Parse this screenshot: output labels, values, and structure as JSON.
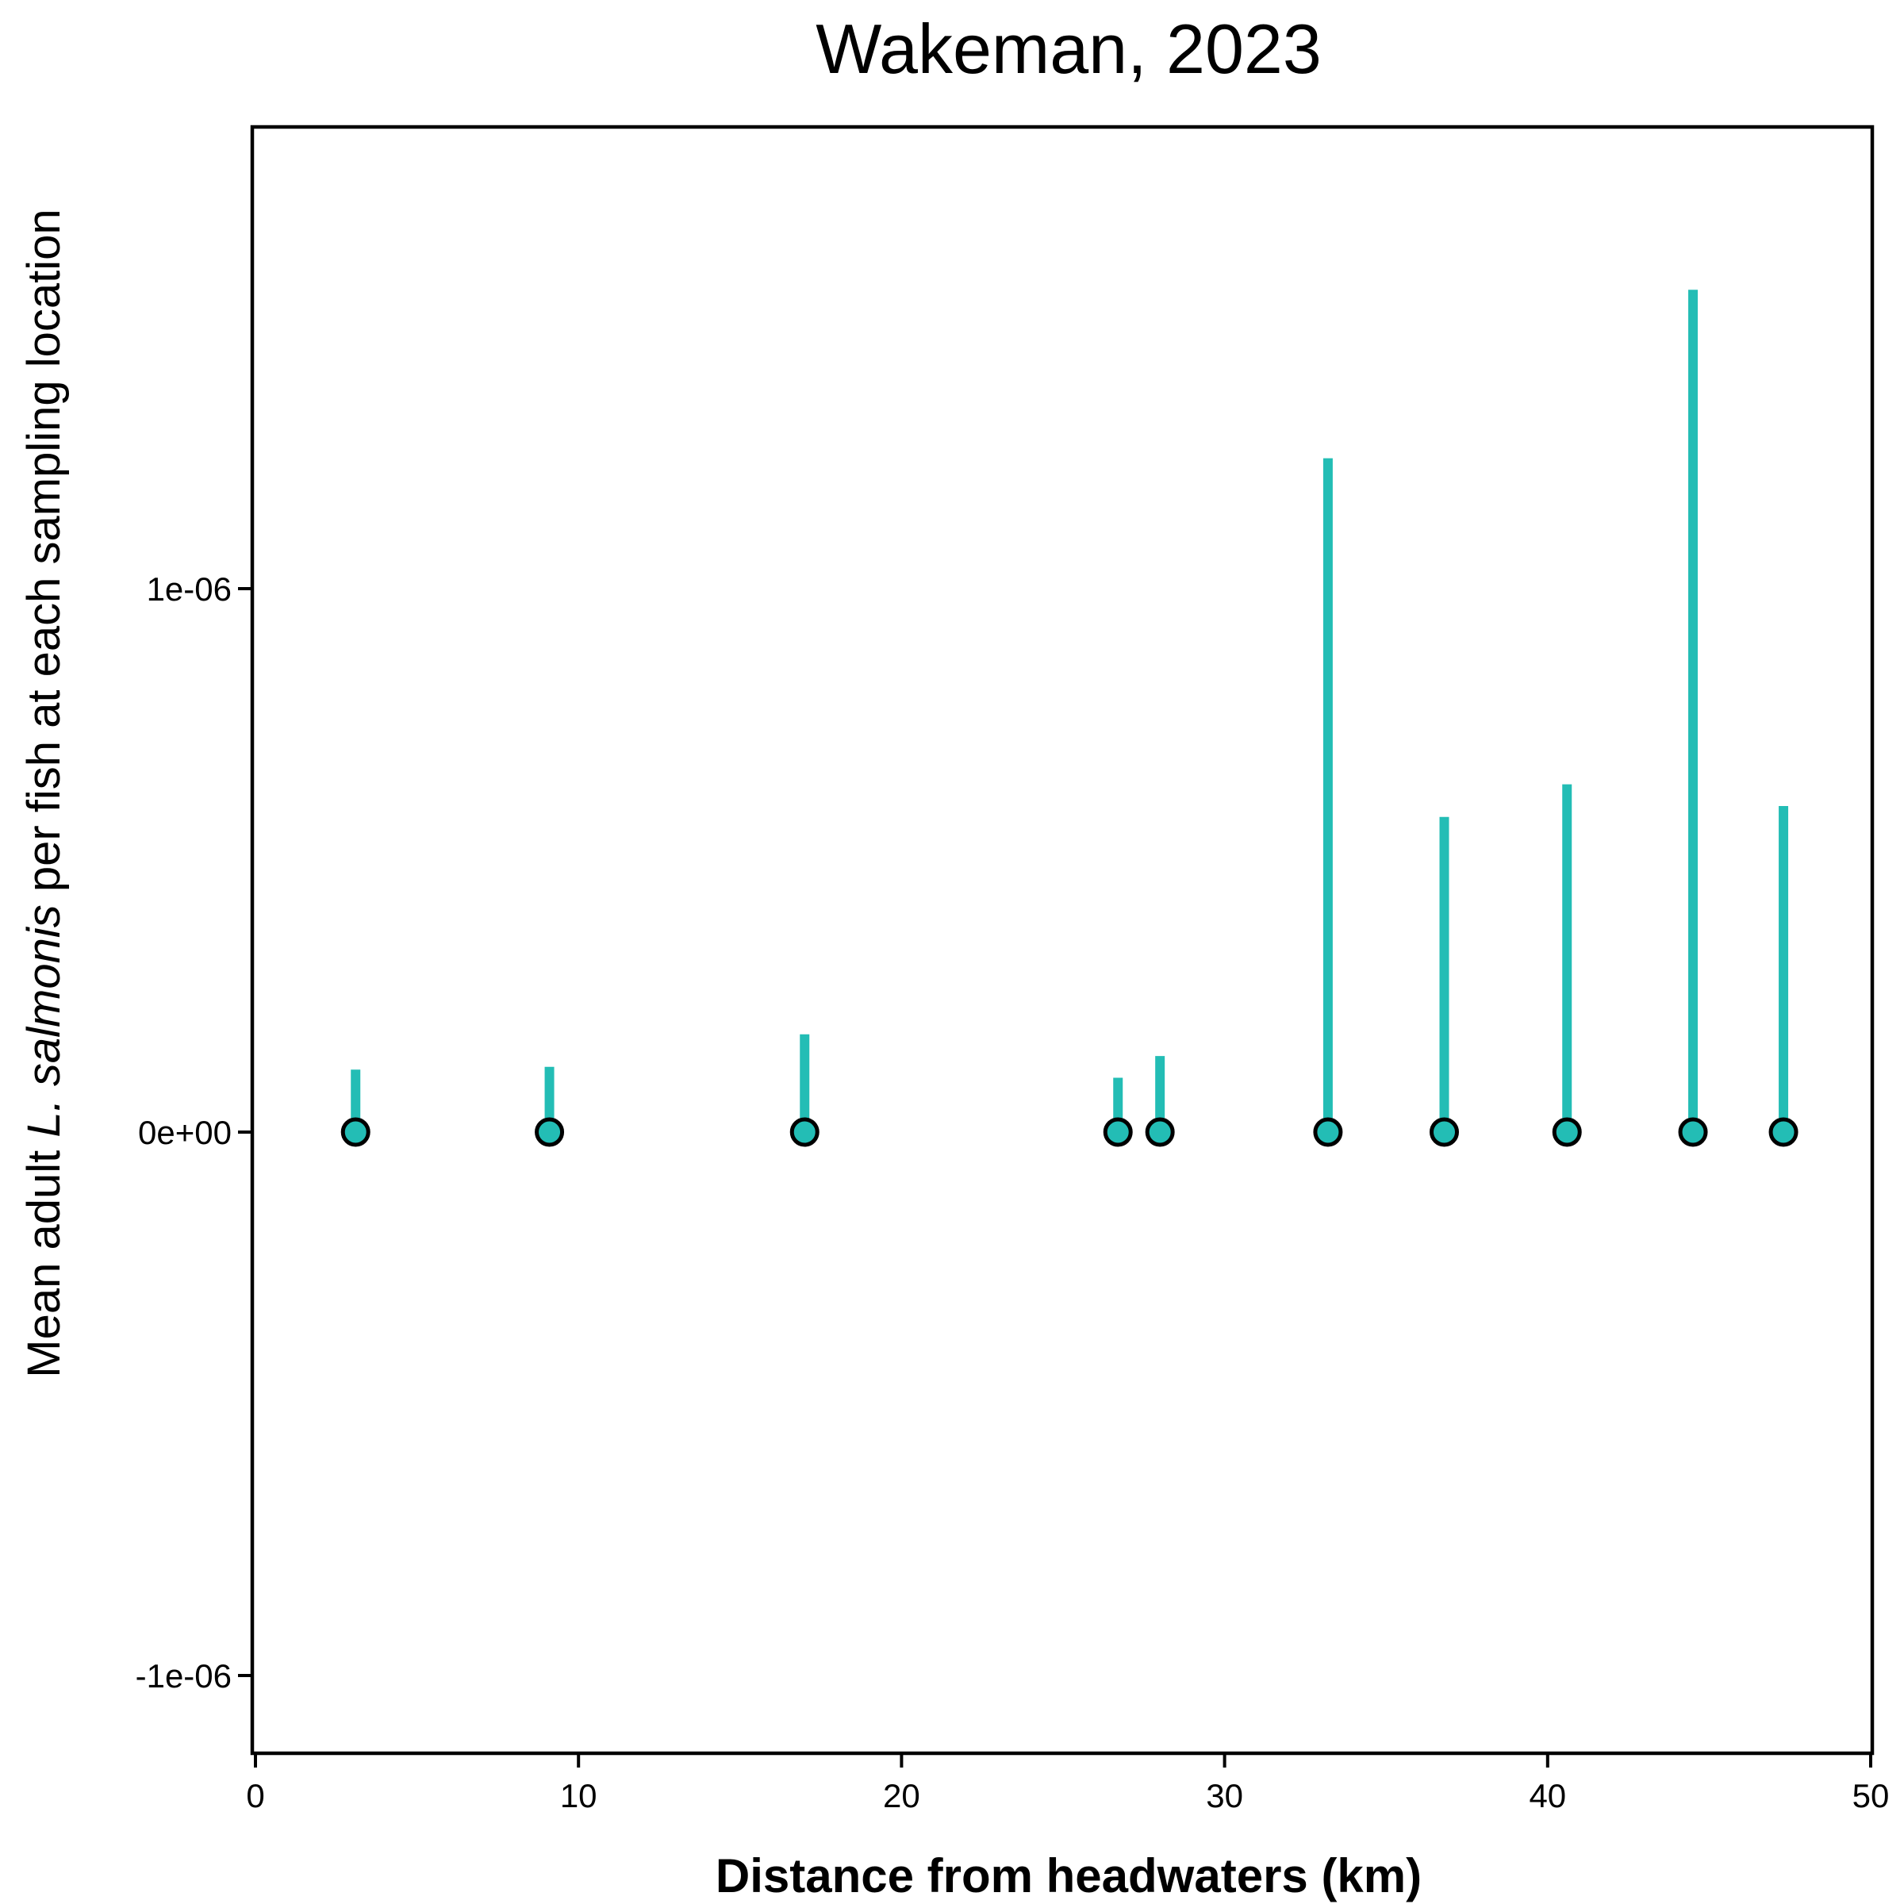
{
  "chart_data": {
    "type": "scatter",
    "title": "Wakeman, 2023",
    "xlabel": "Distance from headwaters (km)",
    "ylabel": {
      "prefix": "Mean adult ",
      "italic": "L. salmonis",
      "suffix": " per fish at each sampling location"
    },
    "xlim": [
      0,
      50
    ],
    "ylim": [
      -1.1e-06,
      1.85e-06
    ],
    "x_ticks": [
      0,
      10,
      20,
      30,
      40,
      50
    ],
    "x_tick_labels": [
      "0",
      "10",
      "20",
      "30",
      "40",
      "50"
    ],
    "y_ticks": [
      -1e-06,
      0,
      1e-06
    ],
    "y_tick_labels": [
      "-1e-06",
      "0e+00",
      "1e-06"
    ],
    "grid": false,
    "legend": "none",
    "colors": {
      "marker_fill": "#23BDB5",
      "marker_edge": "#000000",
      "bar": "#23BDB5"
    },
    "points": [
      {
        "x": 3.1,
        "y": 0,
        "upper": 1.15e-07
      },
      {
        "x": 9.1,
        "y": 0,
        "upper": 1.2e-07
      },
      {
        "x": 17.0,
        "y": 0,
        "upper": 1.8e-07
      },
      {
        "x": 26.7,
        "y": 0,
        "upper": 1e-07
      },
      {
        "x": 28.0,
        "y": 0,
        "upper": 1.4e-07
      },
      {
        "x": 33.2,
        "y": 0,
        "upper": 1.24e-06
      },
      {
        "x": 36.8,
        "y": 0,
        "upper": 5.8e-07
      },
      {
        "x": 40.6,
        "y": 0,
        "upper": 6.4e-07
      },
      {
        "x": 44.5,
        "y": 0,
        "upper": 1.55e-06
      },
      {
        "x": 47.3,
        "y": 0,
        "upper": 6e-07
      }
    ]
  }
}
